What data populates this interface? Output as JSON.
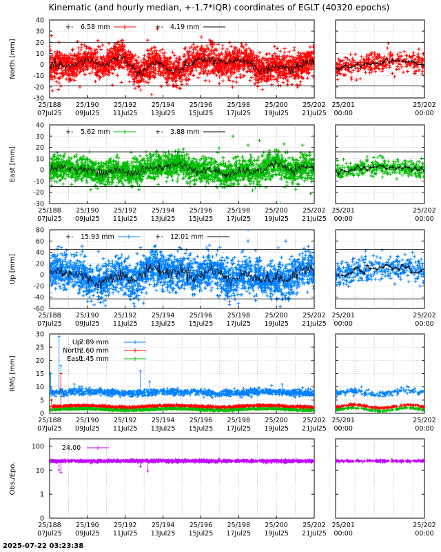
{
  "title": "Kinematic (and hourly median, +-1.7*IQR) coordinates of EGLT (40320 epochs)",
  "timestamp": "2025-07-22 03:23:38",
  "colors": {
    "north": "#ff0000",
    "east": "#00bb00",
    "up": "#0080ff",
    "obs": "#c000ff",
    "median": "#000000"
  },
  "time_axis": {
    "main_ticks_top": [
      "25/188",
      "25/190",
      "25/192",
      "25/194",
      "25/196",
      "25/198",
      "25/200",
      "25/202"
    ],
    "main_ticks_bottom": [
      "07Jul25",
      "09Jul25",
      "11Jul25",
      "13Jul25",
      "15Jul25",
      "17Jul25",
      "19Jul25",
      "21Jul25"
    ],
    "zoom_ticks_top": [
      "25/201",
      "25/202"
    ],
    "zoom_ticks_bottom": [
      "00:00",
      "00:00"
    ]
  },
  "chart_data": [
    {
      "type": "scatter",
      "id": "north",
      "ylabel": "North [mm]",
      "ylim": [
        -30,
        40
      ],
      "yticks": [
        -30,
        -20,
        -10,
        0,
        10,
        20,
        30,
        40
      ],
      "threshold_lines": [
        20,
        -19
      ],
      "legend": [
        {
          "symbol": "+-",
          "text": "6.58 mm",
          "color": "#ff0000"
        },
        {
          "symbol": "+-",
          "text": "4.19 mm",
          "color": "#000000"
        }
      ],
      "series": [
        {
          "color": "#ff0000",
          "spread": 6.58,
          "outliers": [
            [
              188.1,
              26
            ],
            [
              189.6,
              -20
            ],
            [
              191.8,
              -16
            ],
            [
              193.4,
              -27
            ],
            [
              193.2,
              22
            ],
            [
              193.7,
              32
            ],
            [
              188.5,
              20
            ],
            [
              197.4,
              14
            ]
          ]
        },
        {
          "color": "#000000",
          "spread": 4.19
        }
      ]
    },
    {
      "type": "scatter",
      "id": "east",
      "ylabel": "East [mm]",
      "ylim": [
        -30,
        40
      ],
      "yticks": [
        -30,
        -20,
        -10,
        0,
        10,
        20,
        30,
        40
      ],
      "threshold_lines": [
        16,
        -15
      ],
      "legend": [
        {
          "symbol": "+-",
          "text": "5.62 mm",
          "color": "#00bb00"
        },
        {
          "symbol": "+-",
          "text": "3.88 mm",
          "color": "#000000"
        }
      ],
      "series": [
        {
          "color": "#00bb00",
          "spread": 5.62,
          "outliers": [
            [
              197.7,
              30
            ],
            [
              199.1,
              26
            ],
            [
              200.2,
              -30
            ],
            [
              200.4,
              23
            ],
            [
              198.5,
              22
            ],
            [
              201.4,
              22
            ],
            [
              201.8,
              -21
            ]
          ]
        },
        {
          "color": "#000000",
          "spread": 3.88
        }
      ]
    },
    {
      "type": "scatter",
      "id": "up",
      "ylabel": "Up [mm]",
      "ylim": [
        -60,
        80
      ],
      "yticks": [
        -60,
        -40,
        -20,
        0,
        20,
        40,
        60,
        80
      ],
      "threshold_lines": [
        45,
        -43
      ],
      "legend": [
        {
          "symbol": "+-",
          "text": "15.93 mm",
          "color": "#0080ff"
        },
        {
          "symbol": "+-",
          "text": "12.01 mm",
          "color": "#000000"
        }
      ],
      "series": [
        {
          "color": "#0080ff",
          "spread": 15.93,
          "outliers": [
            [
              198.5,
              80
            ],
            [
              198.5,
              60
            ],
            [
              200.2,
              -57
            ],
            [
              200.1,
              48
            ],
            [
              190.2,
              -47
            ],
            [
              192.7,
              -45
            ]
          ]
        },
        {
          "color": "#000000",
          "spread": 12.01
        }
      ]
    },
    {
      "type": "scatter",
      "id": "rms",
      "ylabel": "RMS [mm]",
      "ylim": [
        0,
        30
      ],
      "yticks": [
        0,
        5,
        10,
        15,
        20,
        25,
        30
      ],
      "legend": [
        {
          "name": "Up:",
          "text": "7.89 mm",
          "color": "#0080ff"
        },
        {
          "name": "North:",
          "text": "2.60 mm",
          "color": "#ff0000"
        },
        {
          "name": "East:",
          "text": "1.45 mm",
          "color": "#00bb00"
        }
      ],
      "series": [
        {
          "name": "Up",
          "color": "#0080ff",
          "level": 7.89,
          "spikes": [
            [
              188.05,
              15
            ],
            [
              188.6,
              18
            ],
            [
              188.5,
              29
            ],
            [
              192.8,
              16
            ],
            [
              193.3,
              12
            ],
            [
              189.3,
              11
            ],
            [
              200.3,
              11
            ]
          ]
        },
        {
          "name": "North",
          "color": "#ff0000",
          "level": 2.6,
          "spikes": [
            [
              188.6,
              15
            ],
            [
              188.1,
              5
            ]
          ]
        },
        {
          "name": "East",
          "color": "#00bb00",
          "level": 1.45,
          "spikes": [
            [
              188.0,
              12
            ]
          ]
        }
      ]
    },
    {
      "type": "scatter",
      "id": "obs",
      "ylabel": "Obs./Epo.",
      "yscale": "log",
      "ylim": [
        0.1,
        200
      ],
      "ytick_values": [
        0.1,
        1,
        10,
        100
      ],
      "yticks": [
        "0",
        "1",
        "10",
        "100"
      ],
      "legend": [
        {
          "symbol": "",
          "text": "24.00",
          "color": "#c000ff"
        }
      ],
      "series": [
        {
          "color": "#c000ff",
          "level": 24.0,
          "spikes": [
            [
              188.6,
              8
            ],
            [
              188.5,
              10
            ],
            [
              192.8,
              14
            ],
            [
              193.2,
              9
            ]
          ]
        }
      ]
    }
  ]
}
